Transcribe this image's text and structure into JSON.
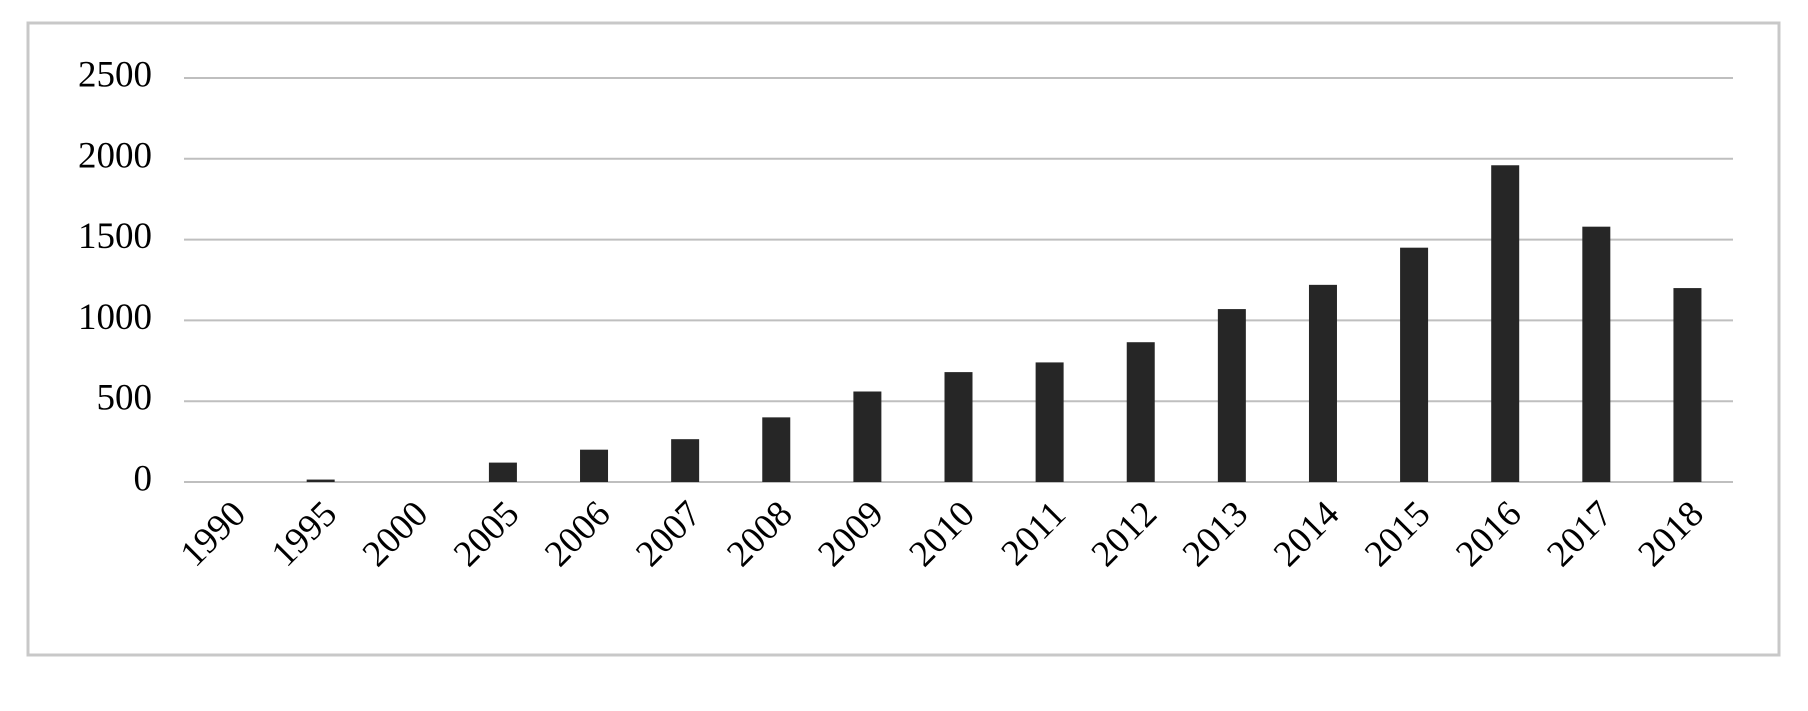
{
  "chart_data": {
    "type": "bar",
    "categories": [
      "1990",
      "1995",
      "2000",
      "2005",
      "2006",
      "2007",
      "2008",
      "2009",
      "2010",
      "2011",
      "2012",
      "2013",
      "2014",
      "2015",
      "2016",
      "2017",
      "2018"
    ],
    "values": [
      0,
      15,
      0,
      120,
      200,
      265,
      400,
      560,
      680,
      740,
      865,
      1070,
      1220,
      1450,
      1960,
      1580,
      1200
    ],
    "color": "#262626",
    "ylim": [
      0,
      2500
    ],
    "yticks": [
      0,
      500,
      1000,
      1500,
      2000,
      2500
    ],
    "grid": true
  }
}
